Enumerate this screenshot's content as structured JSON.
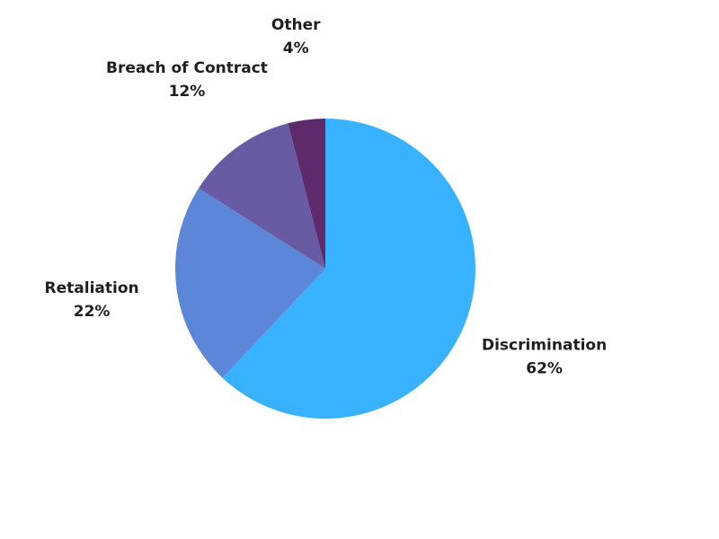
{
  "chart_data": {
    "type": "pie",
    "title": "",
    "slices": [
      {
        "label": "Discrimination",
        "value": 62,
        "display": "62%",
        "color": "#38B2FF"
      },
      {
        "label": "Retaliation",
        "value": 22,
        "display": "22%",
        "color": "#5C87D9"
      },
      {
        "label": "Breach of Contract",
        "value": 12,
        "display": "12%",
        "color": "#685AA3"
      },
      {
        "label": "Other",
        "value": 4,
        "display": "4%",
        "color": "#5E2A6B"
      }
    ],
    "start": "top",
    "direction": "clockwise",
    "legend": "none"
  }
}
